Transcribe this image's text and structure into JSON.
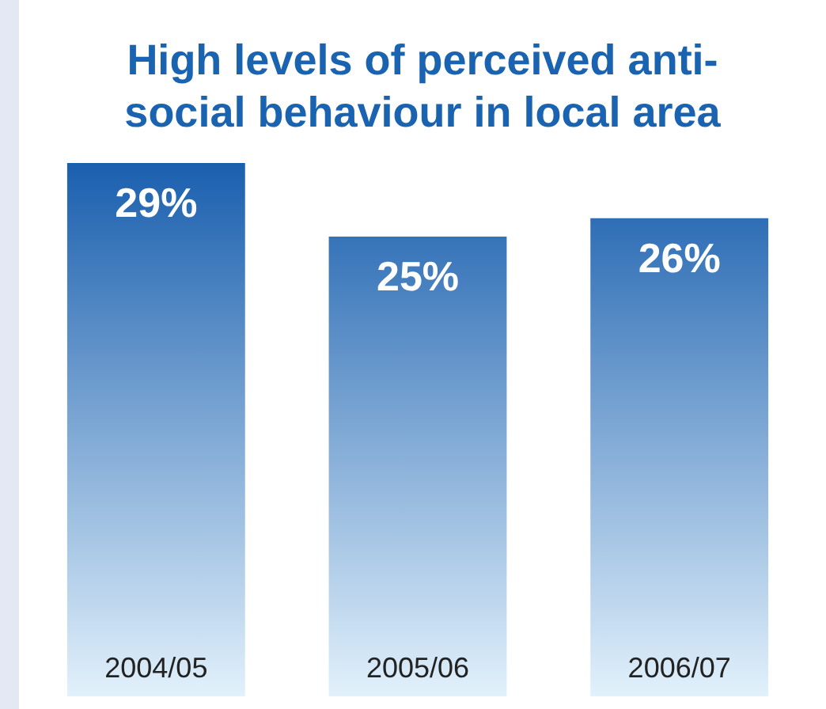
{
  "chart_data": {
    "type": "bar",
    "title": "High levels of perceived anti-social behaviour in local area",
    "categories": [
      "2004/05",
      "2005/06",
      "2006/07"
    ],
    "values": [
      29,
      25,
      26
    ],
    "value_labels": [
      "29%",
      "25%",
      "26%"
    ],
    "color": "#1a5fae",
    "grid": false,
    "legend": false
  }
}
